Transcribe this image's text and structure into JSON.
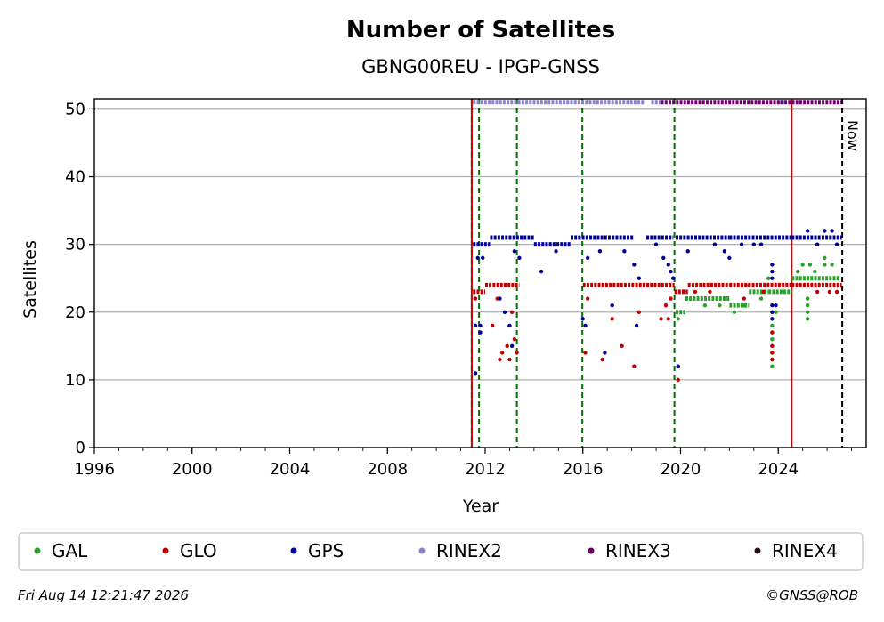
{
  "chart_data": {
    "type": "scatter",
    "title": "Number of Satellites",
    "subtitle": "GBNG00REU - IPGP-GNSS",
    "xlabel": "Year",
    "ylabel": "Satellites",
    "xlim": [
      1996,
      2027.6
    ],
    "ylim": [
      0,
      51.5
    ],
    "x_ticks": [
      "1996",
      "2000",
      "2004",
      "2008",
      "2012",
      "2016",
      "2020",
      "2024"
    ],
    "y_ticks": [
      "0",
      "10",
      "20",
      "30",
      "40",
      "50"
    ],
    "grid": "horizontal",
    "reference_line_y": 50,
    "now_label": "Now",
    "now_x": 2026.62,
    "legend_position": "bottom",
    "colors": {
      "GAL": "#2ca02c",
      "GLO": "#c00000",
      "GPS": "#000099",
      "RINEX2": "#8c83c7",
      "RINEX3": "#6a0068",
      "RINEX4": "#2a0a1a",
      "equipment_change": "#007000",
      "event": "#d40000"
    },
    "vertical_lines": {
      "event": [
        2011.45,
        2024.55
      ],
      "equipment_change": [
        2011.45,
        2011.75,
        2013.3,
        2015.98,
        2019.75
      ]
    },
    "series": [
      {
        "name": "GAL",
        "segments": [
          [
            2019.8,
            2020.2,
            20
          ],
          [
            2020.2,
            2022.0,
            22
          ],
          [
            2022.0,
            2022.8,
            21
          ],
          [
            2022.8,
            2023.6,
            23
          ],
          [
            2023.6,
            2024.55,
            23
          ],
          [
            2024.55,
            2026.5,
            25
          ]
        ],
        "points": [
          [
            2019.9,
            19
          ],
          [
            2021.0,
            21
          ],
          [
            2021.6,
            21
          ],
          [
            2022.2,
            20
          ],
          [
            2022.6,
            21
          ],
          [
            2022.8,
            24
          ],
          [
            2023.3,
            22
          ],
          [
            2023.6,
            25
          ],
          [
            2023.75,
            12
          ],
          [
            2023.75,
            13
          ],
          [
            2023.75,
            14
          ],
          [
            2023.75,
            15
          ],
          [
            2023.75,
            16
          ],
          [
            2023.75,
            17
          ],
          [
            2023.75,
            18
          ],
          [
            2023.9,
            20
          ],
          [
            2024.8,
            26
          ],
          [
            2025.0,
            27
          ],
          [
            2025.3,
            27
          ],
          [
            2025.5,
            26
          ],
          [
            2025.9,
            28
          ],
          [
            2025.9,
            27
          ],
          [
            2026.2,
            27
          ],
          [
            2025.2,
            21
          ],
          [
            2025.2,
            20
          ],
          [
            2025.2,
            19
          ],
          [
            2025.2,
            22
          ]
        ]
      },
      {
        "name": "GLO",
        "segments": [
          [
            2011.5,
            2012.0,
            23
          ],
          [
            2012.0,
            2013.4,
            24
          ],
          [
            2016.0,
            2018.6,
            24
          ],
          [
            2018.6,
            2019.75,
            24
          ],
          [
            2019.75,
            2020.3,
            23
          ],
          [
            2020.3,
            2022.0,
            24
          ],
          [
            2022.0,
            2024.55,
            24
          ],
          [
            2024.55,
            2026.6,
            24
          ]
        ],
        "points": [
          [
            2011.6,
            22
          ],
          [
            2012.3,
            18
          ],
          [
            2012.6,
            13
          ],
          [
            2012.7,
            14
          ],
          [
            2012.9,
            15
          ],
          [
            2013.0,
            13
          ],
          [
            2013.2,
            16
          ],
          [
            2013.3,
            14
          ],
          [
            2013.1,
            20
          ],
          [
            2012.5,
            22
          ],
          [
            2016.1,
            14
          ],
          [
            2016.2,
            22
          ],
          [
            2016.8,
            13
          ],
          [
            2017.2,
            19
          ],
          [
            2017.6,
            15
          ],
          [
            2018.1,
            12
          ],
          [
            2018.3,
            20
          ],
          [
            2019.2,
            19
          ],
          [
            2019.5,
            19
          ],
          [
            2019.9,
            10
          ],
          [
            2019.4,
            21
          ],
          [
            2019.6,
            22
          ],
          [
            2020.6,
            23
          ],
          [
            2021.2,
            23
          ],
          [
            2022.6,
            22
          ],
          [
            2023.4,
            23
          ],
          [
            2023.75,
            14
          ],
          [
            2023.75,
            15
          ],
          [
            2023.75,
            13
          ],
          [
            2023.75,
            17
          ],
          [
            2025.6,
            23
          ],
          [
            2026.1,
            23
          ],
          [
            2026.4,
            23
          ]
        ]
      },
      {
        "name": "GPS",
        "segments": [
          [
            2011.5,
            2012.2,
            30
          ],
          [
            2012.2,
            2014.0,
            31
          ],
          [
            2014.0,
            2015.5,
            30
          ],
          [
            2015.5,
            2018.1,
            31
          ],
          [
            2018.6,
            2019.7,
            31
          ],
          [
            2019.8,
            2022.0,
            31
          ],
          [
            2022.0,
            2024.55,
            31
          ],
          [
            2024.55,
            2026.6,
            31
          ]
        ],
        "points": [
          [
            2011.6,
            11
          ],
          [
            2011.6,
            18
          ],
          [
            2011.8,
            18
          ],
          [
            2011.8,
            17
          ],
          [
            2011.7,
            28
          ],
          [
            2011.9,
            28
          ],
          [
            2012.6,
            22
          ],
          [
            2012.8,
            20
          ],
          [
            2013.0,
            18
          ],
          [
            2013.1,
            15
          ],
          [
            2013.2,
            29
          ],
          [
            2013.4,
            28
          ],
          [
            2014.3,
            26
          ],
          [
            2014.9,
            29
          ],
          [
            2016.0,
            19
          ],
          [
            2016.1,
            18
          ],
          [
            2016.2,
            28
          ],
          [
            2016.7,
            29
          ],
          [
            2016.9,
            14
          ],
          [
            2017.2,
            21
          ],
          [
            2017.7,
            29
          ],
          [
            2018.1,
            27
          ],
          [
            2018.2,
            18
          ],
          [
            2018.3,
            25
          ],
          [
            2019.0,
            30
          ],
          [
            2019.3,
            28
          ],
          [
            2019.5,
            27
          ],
          [
            2019.6,
            26
          ],
          [
            2019.7,
            25
          ],
          [
            2019.9,
            12
          ],
          [
            2020.3,
            29
          ],
          [
            2021.4,
            30
          ],
          [
            2021.8,
            29
          ],
          [
            2022.0,
            28
          ],
          [
            2022.5,
            30
          ],
          [
            2023.0,
            30
          ],
          [
            2023.3,
            30
          ],
          [
            2023.75,
            27
          ],
          [
            2023.75,
            26
          ],
          [
            2023.75,
            25
          ],
          [
            2023.75,
            21
          ],
          [
            2023.75,
            20
          ],
          [
            2023.75,
            19
          ],
          [
            2023.9,
            21
          ],
          [
            2025.2,
            32
          ],
          [
            2025.6,
            30
          ],
          [
            2025.9,
            32
          ],
          [
            2026.2,
            32
          ],
          [
            2026.4,
            30
          ]
        ]
      },
      {
        "name": "RINEX2",
        "segments": [
          [
            2011.5,
            2018.5,
            51
          ],
          [
            2018.8,
            2019.2,
            51
          ],
          [
            2024.0,
            2024.3,
            51
          ]
        ],
        "points": []
      },
      {
        "name": "RINEX3",
        "segments": [
          [
            2019.2,
            2026.6,
            51
          ]
        ],
        "points": []
      },
      {
        "name": "RINEX4",
        "segments": [],
        "points": []
      }
    ]
  },
  "legend": {
    "items": [
      {
        "label": "GAL",
        "color": "#2ca02c"
      },
      {
        "label": "GLO",
        "color": "#c00000"
      },
      {
        "label": "GPS",
        "color": "#000099"
      },
      {
        "label": "RINEX2",
        "color": "#8c83c7"
      },
      {
        "label": "RINEX3",
        "color": "#6a0068"
      },
      {
        "label": "RINEX4",
        "color": "#2a0a1a"
      }
    ]
  },
  "footer": {
    "timestamp": "Fri Aug 14 12:21:47 2026",
    "credit": "©GNSS@ROB"
  }
}
